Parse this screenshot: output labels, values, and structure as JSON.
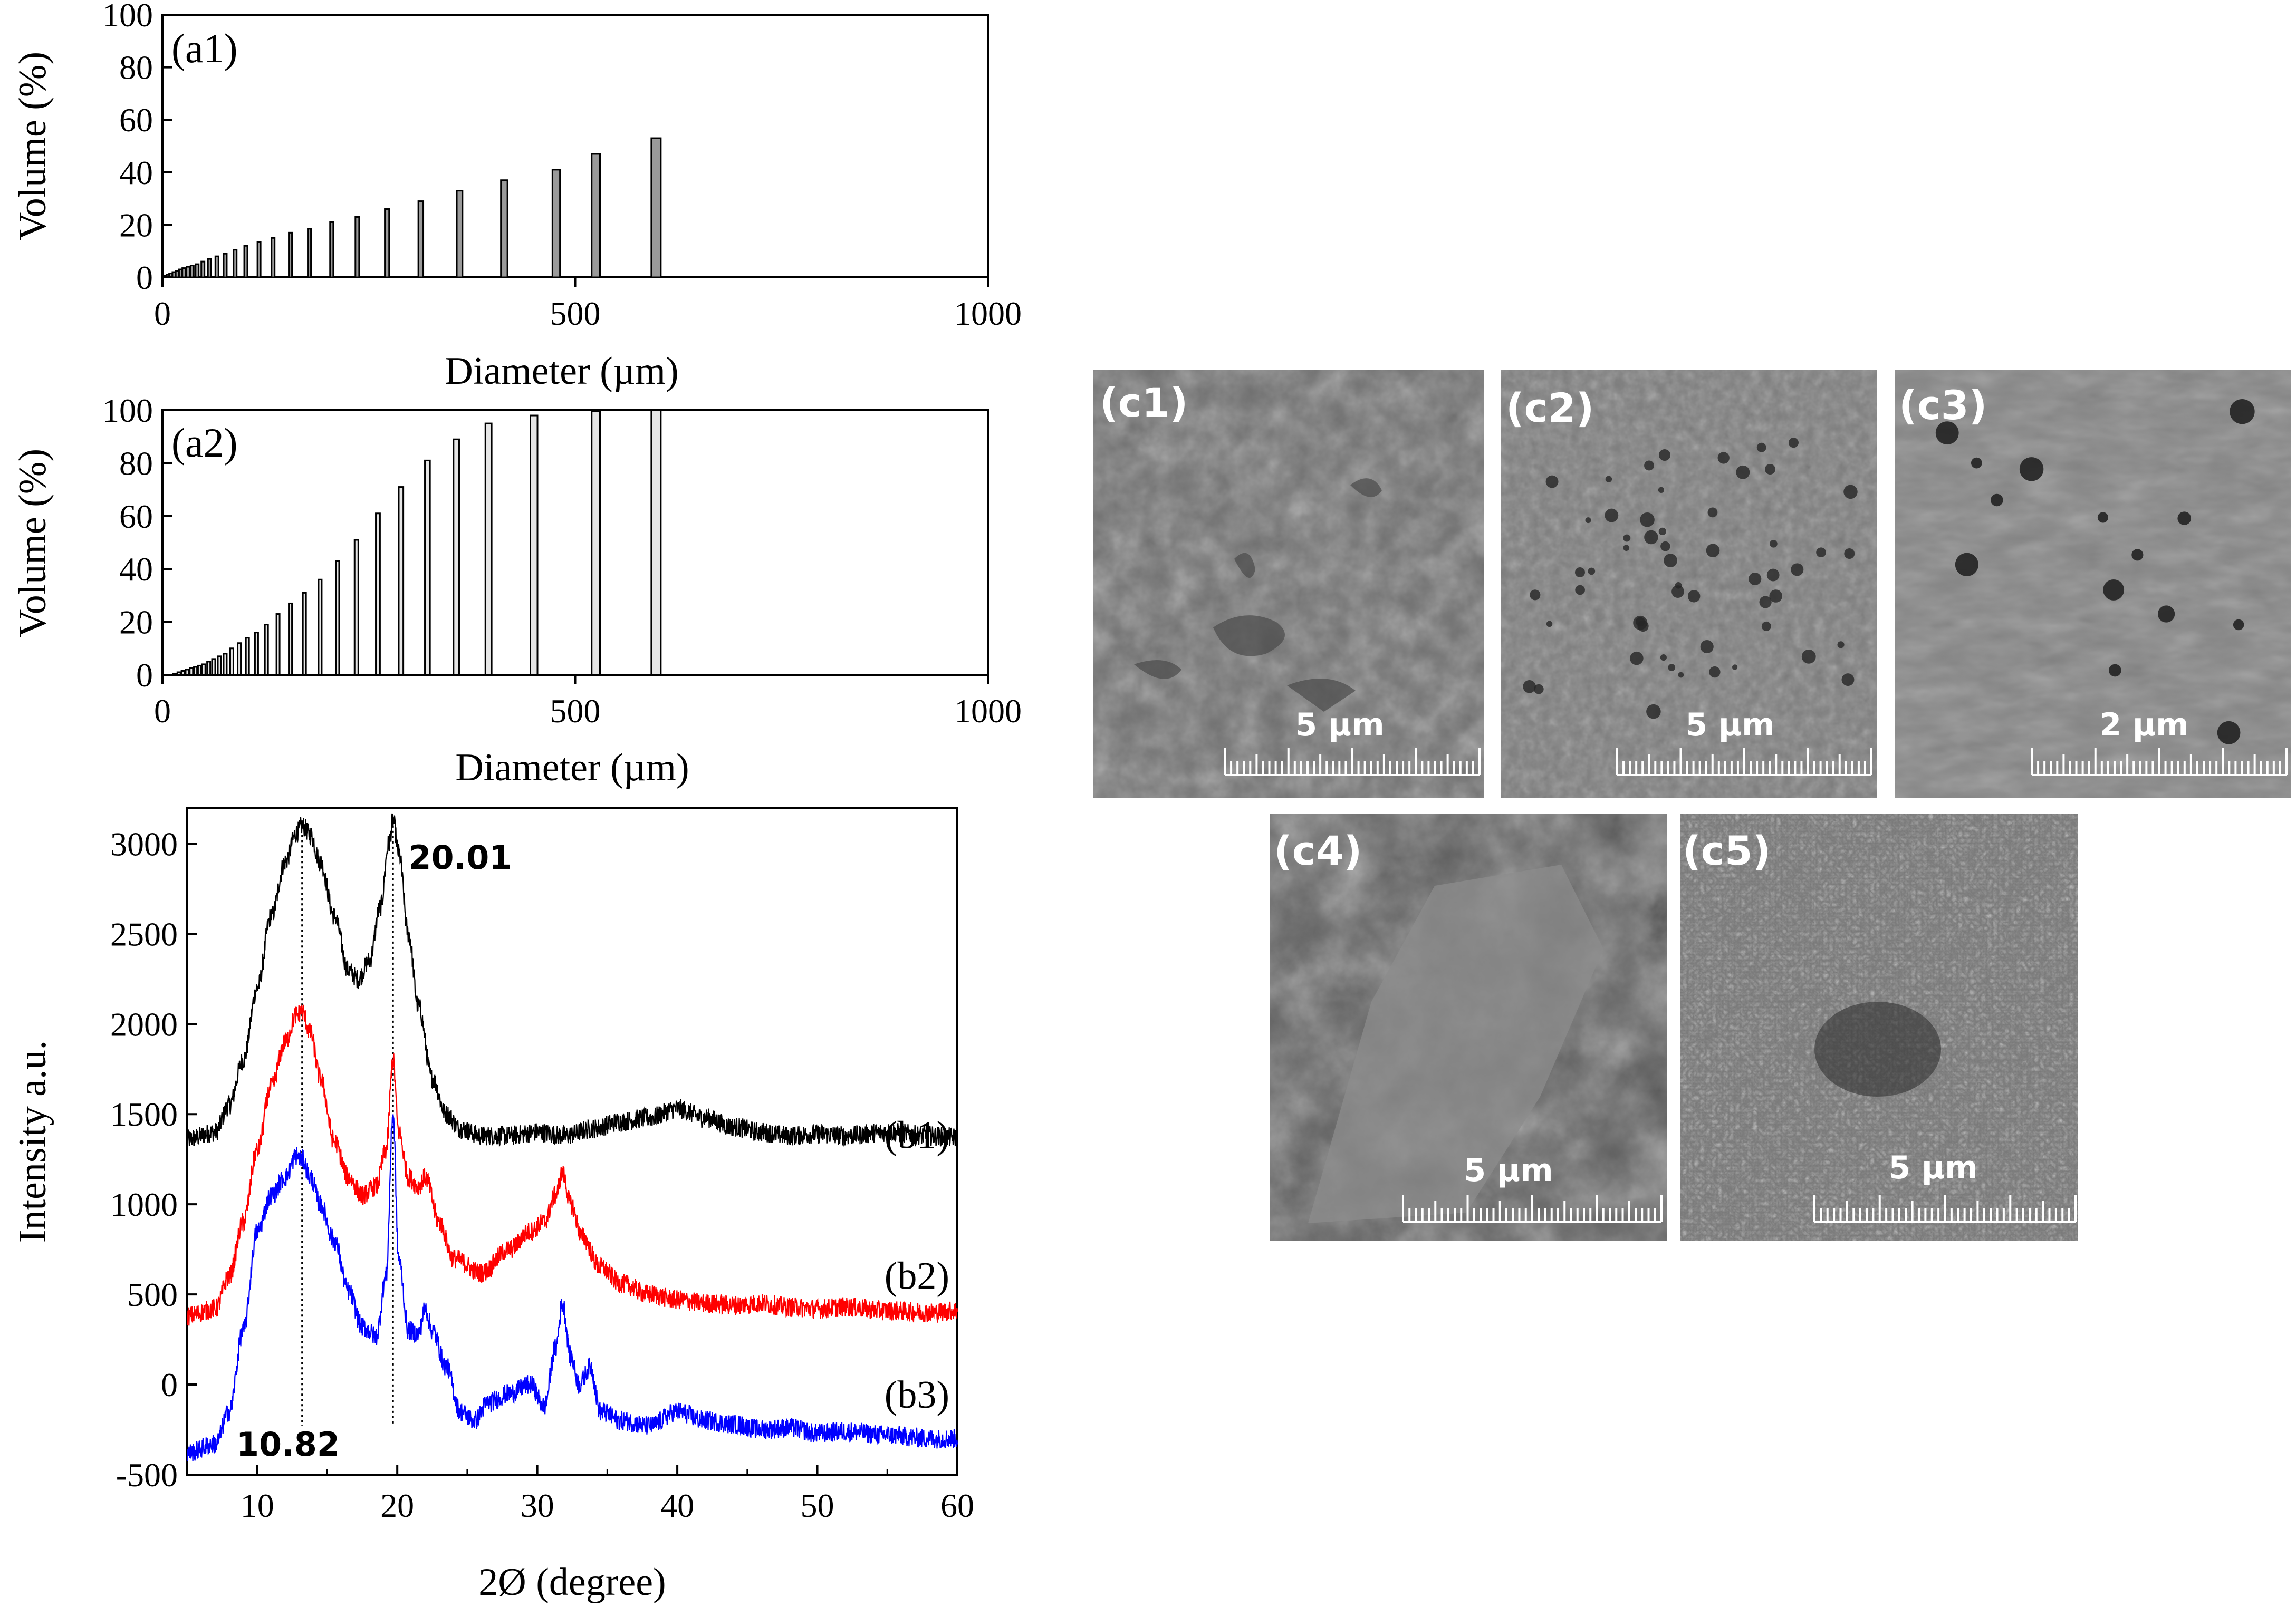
{
  "chart_data": [
    {
      "id": "a1",
      "type": "bar",
      "panel_label": "(a1)",
      "xlabel": "Diameter (µm)",
      "ylabel": "Volume (%)",
      "xlim": [
        0,
        1000
      ],
      "ylim": [
        0,
        100
      ],
      "xticks": [
        "0",
        "500",
        "1000"
      ],
      "yticks": [
        "0",
        "20",
        "40",
        "60",
        "80",
        "100"
      ],
      "x": [
        4,
        7,
        10,
        14,
        18,
        22,
        26,
        31,
        36,
        42,
        49,
        57,
        66,
        76,
        88,
        101,
        117,
        134,
        155,
        178,
        205,
        236,
        272,
        313,
        360,
        414,
        477,
        525,
        598
      ],
      "values": [
        0.5,
        1,
        1.5,
        2,
        2.5,
        3,
        3.5,
        4,
        4.5,
        5,
        6,
        7,
        8,
        9,
        10.5,
        12,
        13.5,
        15,
        17,
        18.5,
        21,
        23,
        26,
        29,
        33,
        37,
        41,
        47,
        53
      ]
    },
    {
      "id": "a2",
      "type": "bar",
      "panel_label": "(a2)",
      "xlabel": "Diameter (µm)",
      "ylabel": "Volume (%)",
      "xlim": [
        0,
        1000
      ],
      "ylim": [
        0,
        100
      ],
      "xticks": [
        "0",
        "500",
        "1000"
      ],
      "yticks": [
        "0",
        "20",
        "40",
        "60",
        "80",
        "100"
      ],
      "x": [
        15,
        20,
        25,
        30,
        35,
        40,
        45,
        50,
        56,
        62,
        69,
        76,
        84,
        93,
        103,
        114,
        126,
        140,
        155,
        172,
        191,
        212,
        235,
        261,
        289,
        321,
        356,
        395,
        450,
        525,
        598
      ],
      "values": [
        0.5,
        1,
        1.5,
        2,
        2.5,
        3,
        3.5,
        4,
        5,
        6,
        7,
        8,
        10,
        12,
        14,
        16,
        19,
        23,
        27,
        31,
        36,
        43,
        51,
        61,
        71,
        81,
        89,
        95,
        98,
        99.5,
        100
      ]
    },
    {
      "id": "b",
      "type": "line",
      "xlabel": "2Ø (degree)",
      "ylabel": "Intensity a.u.",
      "xlim": [
        5,
        60
      ],
      "ylim": [
        -500,
        3200
      ],
      "xticks": [
        "10",
        "20",
        "30",
        "40",
        "50",
        "60"
      ],
      "yticks": [
        "-500",
        "0",
        "500",
        "1000",
        "1500",
        "2000",
        "2500",
        "3000"
      ],
      "annotations": [
        {
          "text": "20.01",
          "x": 19.7,
          "y": 2950
        },
        {
          "text": "10.82",
          "x": 13.2,
          "y": -330
        }
      ],
      "reference_lines_x": [
        13.2,
        19.7
      ],
      "series": [
        {
          "name": "(b1)",
          "color": "#000000",
          "x": [
            5,
            7,
            8,
            9,
            10,
            11,
            12,
            12.8,
            13.2,
            13.8,
            14.5,
            15.5,
            16.5,
            17.2,
            18,
            18.8,
            19.4,
            19.7,
            20.1,
            20.8,
            21.5,
            22.5,
            23.5,
            24.5,
            26,
            28,
            30,
            32,
            34,
            36,
            38,
            40,
            42,
            44,
            46,
            48,
            50,
            52,
            55,
            58,
            60
          ],
          "y": [
            1360,
            1400,
            1550,
            1800,
            2200,
            2600,
            2900,
            3060,
            3100,
            3050,
            2900,
            2600,
            2300,
            2250,
            2350,
            2650,
            3000,
            3130,
            2950,
            2500,
            2100,
            1700,
            1500,
            1420,
            1380,
            1380,
            1400,
            1380,
            1420,
            1460,
            1480,
            1530,
            1480,
            1430,
            1400,
            1380,
            1390,
            1380,
            1400,
            1380,
            1370
          ]
        },
        {
          "name": "(b2)",
          "color": "#ff0000",
          "x": [
            5,
            7,
            8,
            9,
            10,
            11,
            12,
            12.8,
            13.2,
            13.8,
            14.5,
            15.5,
            16.5,
            17.5,
            18.5,
            19.2,
            19.7,
            20.1,
            20.8,
            21.5,
            22,
            23,
            24,
            26,
            28,
            29.5,
            30.5,
            31.3,
            31.8,
            32.4,
            33.2,
            34.5,
            36,
            38,
            40,
            42,
            44,
            46,
            48,
            50,
            52,
            55,
            58,
            60
          ],
          "y": [
            380,
            420,
            600,
            900,
            1300,
            1650,
            1900,
            2050,
            2070,
            1950,
            1700,
            1350,
            1150,
            1050,
            1100,
            1300,
            1800,
            1400,
            1150,
            1100,
            1150,
            900,
            700,
            620,
            750,
            850,
            900,
            1050,
            1170,
            1000,
            820,
            650,
            560,
            500,
            470,
            450,
            440,
            450,
            430,
            420,
            430,
            410,
            400,
            410
          ]
        },
        {
          "name": "(b3)",
          "color": "#0000ff",
          "x": [
            5,
            7,
            8,
            9,
            10,
            11,
            12,
            12.8,
            13.2,
            13.8,
            14.5,
            15.5,
            16.5,
            17.5,
            18.5,
            19.2,
            19.7,
            20.1,
            20.8,
            21.5,
            22,
            22.5,
            23.5,
            24.5,
            25.5,
            26.5,
            28,
            29.5,
            30.5,
            31.3,
            31.8,
            32.4,
            33,
            33.8,
            34.5,
            36,
            38,
            40,
            42,
            44,
            46,
            48,
            50,
            52,
            55,
            58,
            60
          ],
          "y": [
            -380,
            -330,
            -150,
            300,
            850,
            1050,
            1150,
            1270,
            1250,
            1150,
            1000,
            800,
            520,
            320,
            270,
            600,
            1500,
            700,
            300,
            280,
            420,
            300,
            100,
            -150,
            -200,
            -100,
            -50,
            0,
            -120,
            200,
            450,
            150,
            0,
            100,
            -150,
            -200,
            -230,
            -150,
            -200,
            -220,
            -250,
            -240,
            -270,
            -260,
            -280,
            -300,
            -300
          ]
        }
      ]
    }
  ],
  "sem_panels": [
    {
      "label": "(c1)",
      "scale": "5 µm"
    },
    {
      "label": "(c2)",
      "scale": "5 µm"
    },
    {
      "label": "(c3)",
      "scale": "2 µm"
    },
    {
      "label": "(c4)",
      "scale": "5 µm"
    },
    {
      "label": "(c5)",
      "scale": "5 µm"
    }
  ]
}
